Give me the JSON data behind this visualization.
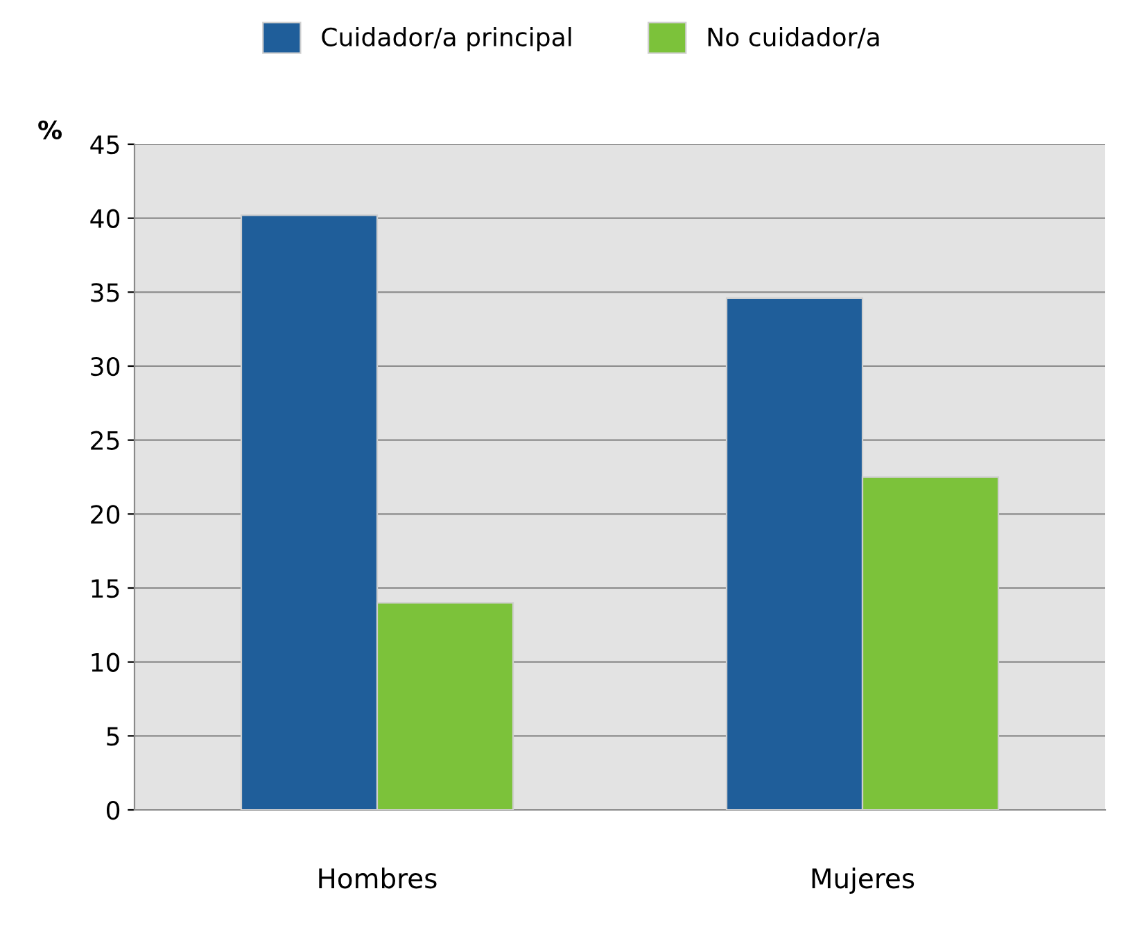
{
  "chart_data": {
    "type": "bar",
    "ylabel": "%",
    "categories": [
      "Hombres",
      "Mujeres"
    ],
    "series": [
      {
        "name": "Cuidador/a principal",
        "color": "#1f5e9a",
        "values": [
          40.2,
          34.6
        ]
      },
      {
        "name": "No cuidador/a",
        "color": "#7cc23a",
        "values": [
          14.0,
          22.5
        ]
      }
    ],
    "ylim": [
      0,
      45
    ],
    "yticks": [
      0,
      5,
      10,
      15,
      20,
      25,
      30,
      35,
      40,
      45
    ],
    "grid": "y",
    "legend": "top"
  }
}
